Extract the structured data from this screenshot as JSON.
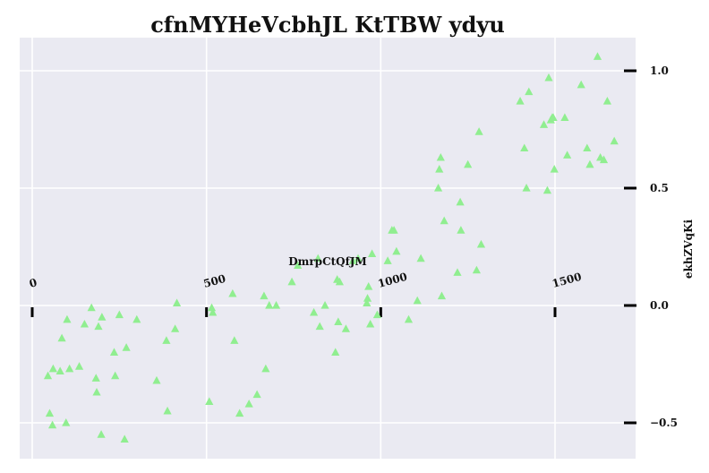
{
  "chart_data": {
    "type": "scatter",
    "title": "cfnMYHeVcbhJL KtTBW ydyu",
    "xlabel": "DmrpCtQfJM",
    "ylabel": "ekhZVqKi",
    "xlim": [
      -40,
      1740
    ],
    "ylim": [
      -0.65,
      1.13
    ],
    "xticks": [
      0,
      500,
      1000,
      1500
    ],
    "xtick_labels": [
      "0",
      "500",
      "1000",
      "1500"
    ],
    "yticks": [
      -0.5,
      0.0,
      0.5,
      1.0
    ],
    "ytick_labels": [
      "−0.5",
      "0.0",
      "0.5",
      "1.0"
    ],
    "grid": true,
    "marker": "triangle",
    "color": "#90ee90",
    "background": "#eaeaf2",
    "series": [
      {
        "points": [
          [
            45,
            -0.3
          ],
          [
            50,
            -0.46
          ],
          [
            58,
            -0.51
          ],
          [
            60,
            -0.27
          ],
          [
            80,
            -0.28
          ],
          [
            85,
            -0.14
          ],
          [
            97,
            -0.5
          ],
          [
            100,
            -0.06
          ],
          [
            107,
            -0.27
          ],
          [
            135,
            -0.26
          ],
          [
            150,
            -0.08
          ],
          [
            170,
            -0.01
          ],
          [
            183,
            -0.31
          ],
          [
            185,
            -0.37
          ],
          [
            190,
            -0.09
          ],
          [
            198,
            -0.55
          ],
          [
            200,
            -0.05
          ],
          [
            235,
            -0.2
          ],
          [
            238,
            -0.3
          ],
          [
            250,
            -0.04
          ],
          [
            265,
            -0.57
          ],
          [
            270,
            -0.18
          ],
          [
            300,
            -0.06
          ],
          [
            357,
            -0.32
          ],
          [
            385,
            -0.15
          ],
          [
            388,
            -0.45
          ],
          [
            410,
            -0.1
          ],
          [
            415,
            0.01
          ],
          [
            508,
            -0.41
          ],
          [
            515,
            -0.01
          ],
          [
            518,
            -0.03
          ],
          [
            575,
            0.05
          ],
          [
            580,
            -0.15
          ],
          [
            595,
            -0.46
          ],
          [
            622,
            -0.42
          ],
          [
            645,
            -0.38
          ],
          [
            665,
            0.04
          ],
          [
            670,
            -0.27
          ],
          [
            680,
            0.0
          ],
          [
            700,
            0.0
          ],
          [
            745,
            0.1
          ],
          [
            762,
            0.17
          ],
          [
            808,
            -0.03
          ],
          [
            820,
            0.2
          ],
          [
            825,
            -0.09
          ],
          [
            840,
            0.0
          ],
          [
            870,
            -0.2
          ],
          [
            875,
            0.11
          ],
          [
            878,
            -0.07
          ],
          [
            882,
            0.1
          ],
          [
            900,
            -0.1
          ],
          [
            920,
            0.19
          ],
          [
            935,
            0.2
          ],
          [
            960,
            0.01
          ],
          [
            962,
            0.03
          ],
          [
            965,
            0.08
          ],
          [
            970,
            -0.08
          ],
          [
            975,
            0.22
          ],
          [
            990,
            -0.04
          ],
          [
            1020,
            0.19
          ],
          [
            1032,
            0.32
          ],
          [
            1038,
            0.32
          ],
          [
            1045,
            0.23
          ],
          [
            1080,
            -0.06
          ],
          [
            1105,
            0.02
          ],
          [
            1115,
            0.2
          ],
          [
            1165,
            0.5
          ],
          [
            1168,
            0.58
          ],
          [
            1172,
            0.63
          ],
          [
            1175,
            0.04
          ],
          [
            1182,
            0.36
          ],
          [
            1220,
            0.14
          ],
          [
            1228,
            0.44
          ],
          [
            1230,
            0.32
          ],
          [
            1250,
            0.6
          ],
          [
            1275,
            0.15
          ],
          [
            1282,
            0.74
          ],
          [
            1288,
            0.26
          ],
          [
            1400,
            0.87
          ],
          [
            1412,
            0.67
          ],
          [
            1418,
            0.5
          ],
          [
            1425,
            0.91
          ],
          [
            1468,
            0.77
          ],
          [
            1478,
            0.49
          ],
          [
            1482,
            0.97
          ],
          [
            1488,
            0.79
          ],
          [
            1492,
            0.8
          ],
          [
            1495,
            0.8
          ],
          [
            1498,
            0.58
          ],
          [
            1528,
            0.8
          ],
          [
            1535,
            0.64
          ],
          [
            1575,
            0.94
          ],
          [
            1592,
            0.67
          ],
          [
            1600,
            0.6
          ],
          [
            1622,
            1.06
          ],
          [
            1630,
            0.63
          ],
          [
            1640,
            0.62
          ],
          [
            1650,
            0.87
          ],
          [
            1670,
            0.7
          ]
        ]
      }
    ]
  }
}
